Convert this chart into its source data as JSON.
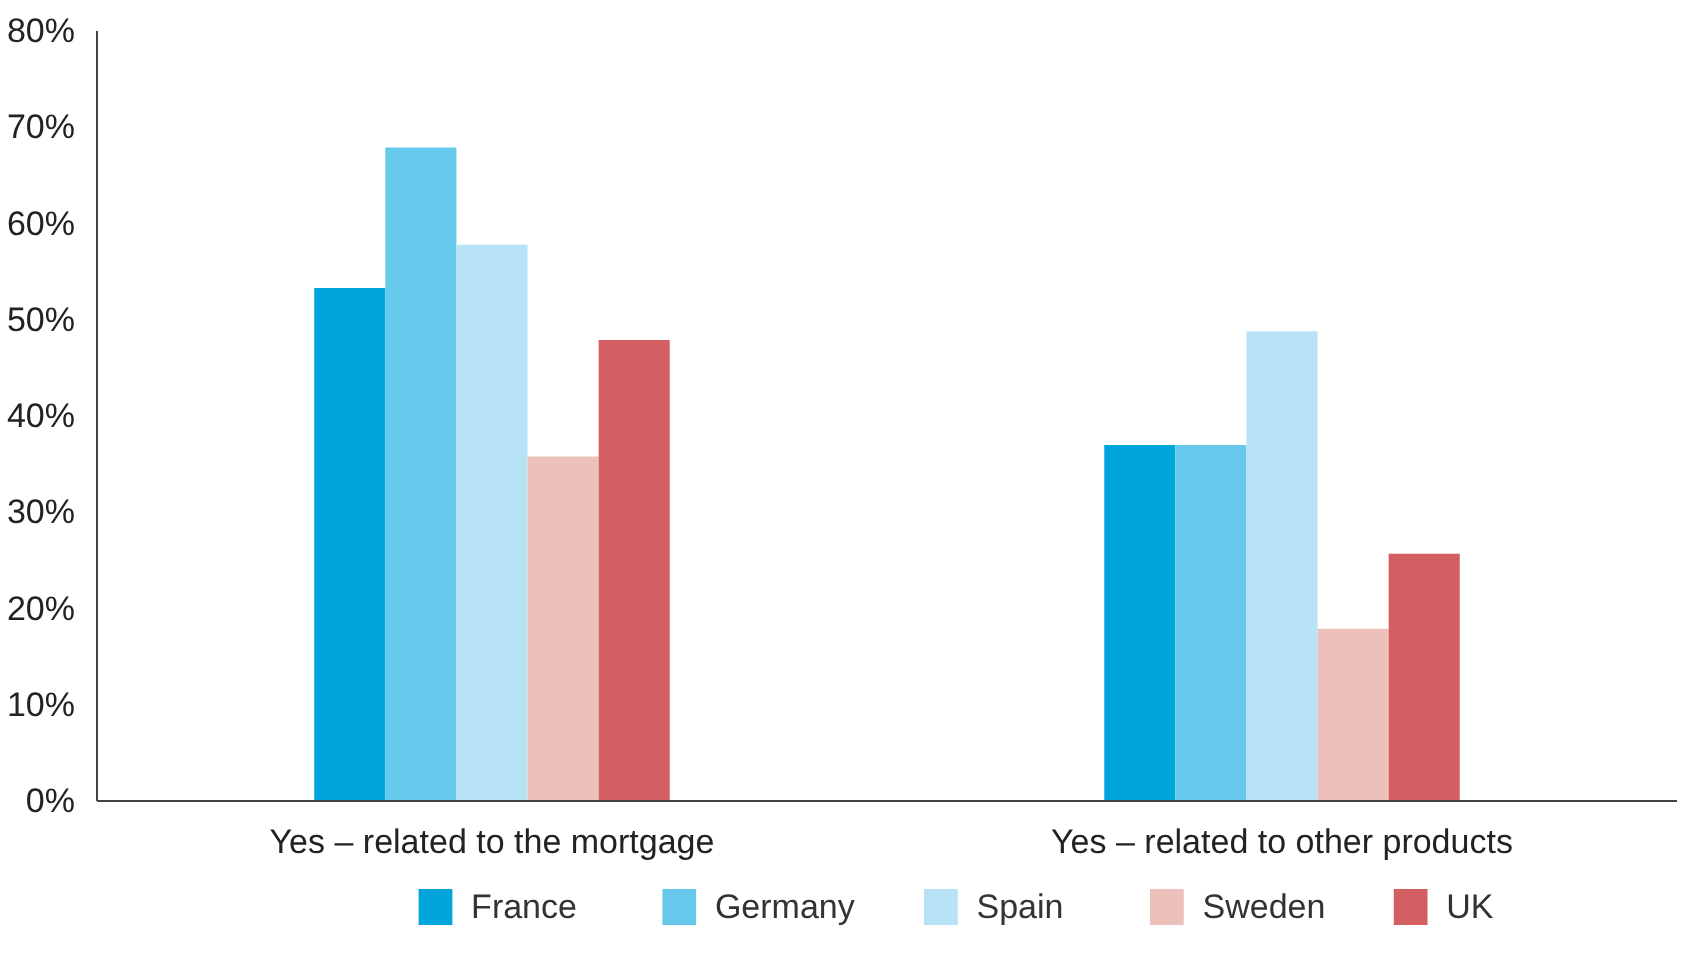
{
  "chart_data": {
    "type": "bar",
    "categories": [
      "Yes – related to the mortgage",
      "Yes – related to other products"
    ],
    "series": [
      {
        "name": "France",
        "color": "#00a5dc",
        "values": [
          53.3,
          37.0
        ]
      },
      {
        "name": "Germany",
        "color": "#66c9ec",
        "values": [
          67.9,
          37.0
        ]
      },
      {
        "name": "Spain",
        "color": "#b8e2f5",
        "values": [
          57.8,
          48.8
        ]
      },
      {
        "name": "Sweden",
        "color": "#edc1bb",
        "values": [
          35.8,
          17.9
        ]
      },
      {
        "name": "UK",
        "color": "#d45f63",
        "values": [
          47.9,
          25.7
        ]
      }
    ],
    "ylim": [
      0,
      80
    ],
    "yticks": [
      {
        "value": 0,
        "label": "0%"
      },
      {
        "value": 10,
        "label": "10%"
      },
      {
        "value": 20,
        "label": "20%"
      },
      {
        "value": 30,
        "label": "30%"
      },
      {
        "value": 40,
        "label": "40%"
      },
      {
        "value": 50,
        "label": "50%"
      },
      {
        "value": 60,
        "label": "60%"
      },
      {
        "value": 70,
        "label": "70%"
      },
      {
        "value": 80,
        "label": "80%"
      }
    ],
    "grid": false,
    "legend": "bottom"
  }
}
